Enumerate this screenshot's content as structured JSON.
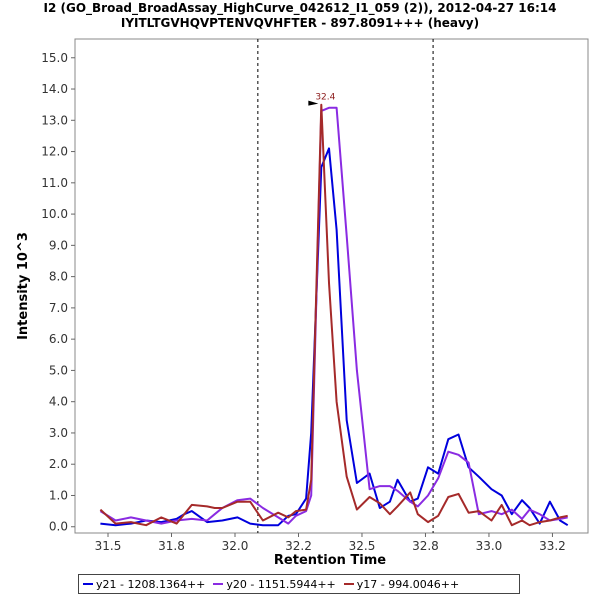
{
  "chart_data": {
    "type": "line",
    "title_line1": "I2 (GO_Broad_BroadAssay_HighCurve_042612_I1_059 (2)), 2012-04-27 16:14",
    "title_line2": "IYITLTGVHQVPTENVQVHFTER - 897.8091+++ (heavy)",
    "xlabel": "Retention Time",
    "ylabel": "Intensity 10^3",
    "xlim": [
      31.37,
      33.39
    ],
    "ylim": [
      -0.2,
      15.6
    ],
    "x_ticks": [
      "31.5",
      "31.8",
      "32.0",
      "32.2",
      "32.5",
      "32.8",
      "33.0",
      "33.2"
    ],
    "x_tick_values": [
      31.5,
      31.75,
      32.0,
      32.25,
      32.5,
      32.75,
      33.0,
      33.25
    ],
    "y_ticks": [
      "0.0",
      "1.0",
      "2.0",
      "3.0",
      "4.0",
      "5.0",
      "6.0",
      "7.0",
      "8.0",
      "9.0",
      "10.0",
      "11.0",
      "12.0",
      "13.0",
      "14.0",
      "15.0"
    ],
    "y_tick_values": [
      0,
      1,
      2,
      3,
      4,
      5,
      6,
      7,
      8,
      9,
      10,
      11,
      12,
      13,
      14,
      15
    ],
    "vlines": [
      32.09,
      32.78
    ],
    "peak_annotation": {
      "label": "32.4",
      "x": 32.34,
      "y": 13.5
    },
    "series": [
      {
        "name": "y21 - 1208.1364++",
        "color": "#0000dd",
        "x": [
          31.47,
          31.53,
          31.59,
          31.65,
          31.71,
          31.77,
          31.8,
          31.83,
          31.89,
          31.95,
          32.01,
          32.06,
          32.11,
          32.17,
          32.21,
          32.24,
          32.28,
          32.3,
          32.34,
          32.37,
          32.4,
          32.44,
          32.48,
          32.53,
          32.57,
          32.61,
          32.64,
          32.69,
          32.72,
          32.76,
          32.8,
          32.84,
          32.88,
          32.92,
          32.96,
          33.01,
          33.05,
          33.09,
          33.13,
          33.16,
          33.2,
          33.24,
          33.28,
          33.31
        ],
        "y": [
          0.1,
          0.05,
          0.1,
          0.2,
          0.15,
          0.25,
          0.4,
          0.5,
          0.15,
          0.2,
          0.3,
          0.1,
          0.05,
          0.05,
          0.35,
          0.4,
          0.9,
          3.0,
          11.5,
          12.1,
          9.5,
          3.4,
          1.4,
          1.7,
          0.6,
          0.8,
          1.5,
          0.8,
          0.9,
          1.9,
          1.7,
          2.8,
          2.95,
          1.9,
          1.6,
          1.2,
          1.0,
          0.4,
          0.85,
          0.6,
          0.1,
          0.8,
          0.2,
          0.05
        ]
      },
      {
        "name": "y20 - 1151.5944++",
        "color": "#8a2be2",
        "x": [
          31.47,
          31.53,
          31.59,
          31.65,
          31.71,
          31.77,
          31.83,
          31.89,
          31.92,
          31.95,
          32.01,
          32.06,
          32.11,
          32.17,
          32.21,
          32.24,
          32.28,
          32.3,
          32.34,
          32.37,
          32.4,
          32.44,
          32.48,
          32.53,
          32.57,
          32.61,
          32.64,
          32.69,
          32.72,
          32.76,
          32.8,
          32.84,
          32.88,
          32.92,
          32.96,
          33.01,
          33.05,
          33.09,
          33.13,
          33.16,
          33.2,
          33.24,
          33.28,
          33.31
        ],
        "y": [
          0.5,
          0.2,
          0.3,
          0.2,
          0.1,
          0.2,
          0.25,
          0.2,
          0.4,
          0.6,
          0.85,
          0.9,
          0.6,
          0.3,
          0.1,
          0.35,
          0.5,
          1.0,
          13.3,
          13.4,
          13.4,
          9.3,
          5.0,
          1.2,
          1.3,
          1.3,
          1.15,
          0.8,
          0.65,
          1.0,
          1.55,
          2.4,
          2.3,
          2.05,
          0.4,
          0.5,
          0.4,
          0.55,
          0.25,
          0.55,
          0.4,
          0.2,
          0.25,
          0.3
        ]
      },
      {
        "name": "y17 - 994.0046++",
        "color": "#a52a2a",
        "x": [
          31.47,
          31.53,
          31.59,
          31.65,
          31.71,
          31.77,
          31.83,
          31.89,
          31.92,
          31.95,
          32.01,
          32.06,
          32.11,
          32.17,
          32.21,
          32.24,
          32.28,
          32.3,
          32.34,
          32.37,
          32.4,
          32.44,
          32.48,
          32.53,
          32.57,
          32.61,
          32.64,
          32.69,
          32.72,
          32.76,
          32.8,
          32.84,
          32.88,
          32.92,
          32.96,
          33.01,
          33.05,
          33.09,
          33.13,
          33.16,
          33.2,
          33.24,
          33.28,
          33.31
        ],
        "y": [
          0.55,
          0.1,
          0.15,
          0.05,
          0.3,
          0.1,
          0.7,
          0.65,
          0.6,
          0.6,
          0.8,
          0.8,
          0.2,
          0.45,
          0.3,
          0.5,
          0.55,
          1.5,
          13.5,
          7.8,
          4.0,
          1.6,
          0.55,
          0.95,
          0.75,
          0.4,
          0.65,
          1.1,
          0.4,
          0.15,
          0.35,
          0.95,
          1.05,
          0.45,
          0.5,
          0.2,
          0.7,
          0.05,
          0.2,
          0.05,
          0.15,
          0.2,
          0.3,
          0.35
        ]
      }
    ]
  }
}
